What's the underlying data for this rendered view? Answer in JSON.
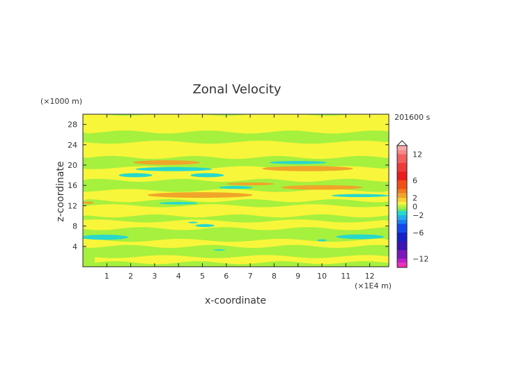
{
  "chart_data": {
    "type": "heatmap",
    "title": "Zonal Velocity",
    "xlabel": "x-coordinate",
    "ylabel": "z-coordinate",
    "x_unit": "(×1E4 m)",
    "y_unit": "(×1000 m)",
    "time_label": "201600 s",
    "xlim": [
      0,
      12.8
    ],
    "ylim": [
      0,
      30
    ],
    "x_ticks": [
      1,
      2,
      3,
      4,
      5,
      6,
      7,
      8,
      9,
      10,
      11,
      12
    ],
    "y_ticks": [
      4,
      8,
      12,
      16,
      20,
      24,
      28
    ],
    "colorbar": {
      "min": -14,
      "max": 14,
      "tick_values": [
        12,
        6,
        2,
        0,
        -2,
        -6,
        -12
      ],
      "tick_labels": [
        "12",
        "6",
        "2",
        "0",
        "−2",
        "−6",
        "−12"
      ]
    },
    "background_value": 0,
    "features": [
      {
        "kind": "band",
        "x": [
          0.0,
          12.8
        ],
        "z": [
          26.5,
          30.0
        ],
        "value": 0.6
      },
      {
        "kind": "band",
        "x": [
          0.0,
          12.8
        ],
        "z": [
          21.5,
          24.5
        ],
        "value": 0.6
      },
      {
        "kind": "band",
        "x": [
          0.0,
          12.8
        ],
        "z": [
          17.0,
          19.5
        ],
        "value": 0.6
      },
      {
        "kind": "band",
        "x": [
          0.0,
          12.8
        ],
        "z": [
          13.0,
          15.0
        ],
        "value": 0.6
      },
      {
        "kind": "band",
        "x": [
          0.0,
          12.8
        ],
        "z": [
          10.0,
          12.0
        ],
        "value": 0.6
      },
      {
        "kind": "band",
        "x": [
          0.0,
          12.8
        ],
        "z": [
          7.5,
          9.0
        ],
        "value": 0.6
      },
      {
        "kind": "band",
        "x": [
          0.0,
          12.8
        ],
        "z": [
          4.0,
          5.2
        ],
        "value": 0.6
      },
      {
        "kind": "band",
        "x": [
          0.5,
          12.8
        ],
        "z": [
          0.8,
          2.0
        ],
        "value": 0.6
      },
      {
        "kind": "blob",
        "x": 3.5,
        "z": 20.5,
        "w": 2.8,
        "h": 0.9,
        "value": 2.4
      },
      {
        "kind": "blob",
        "x": 3.8,
        "z": 19.2,
        "w": 3.2,
        "h": 0.8,
        "value": -1.6
      },
      {
        "kind": "blob",
        "x": 2.2,
        "z": 18.0,
        "w": 1.4,
        "h": 0.8,
        "value": -1.6
      },
      {
        "kind": "blob",
        "x": 5.2,
        "z": 18.0,
        "w": 1.4,
        "h": 0.8,
        "value": -1.6
      },
      {
        "kind": "blob",
        "x": 9.4,
        "z": 19.3,
        "w": 3.8,
        "h": 1.0,
        "value": 2.4
      },
      {
        "kind": "blob",
        "x": 9.0,
        "z": 20.5,
        "w": 2.4,
        "h": 0.6,
        "value": -1.6
      },
      {
        "kind": "blob",
        "x": 7.0,
        "z": 16.3,
        "w": 2.0,
        "h": 0.6,
        "value": 2.4
      },
      {
        "kind": "blob",
        "x": 6.4,
        "z": 15.6,
        "w": 1.4,
        "h": 0.6,
        "value": -1.6
      },
      {
        "kind": "blob",
        "x": 10.0,
        "z": 15.6,
        "w": 3.4,
        "h": 0.9,
        "value": 2.4
      },
      {
        "kind": "blob",
        "x": 4.9,
        "z": 14.1,
        "w": 4.4,
        "h": 1.1,
        "value": 2.4
      },
      {
        "kind": "blob",
        "x": 11.6,
        "z": 14.0,
        "w": 2.4,
        "h": 0.6,
        "value": -1.6
      },
      {
        "kind": "blob",
        "x": 4.0,
        "z": 12.5,
        "w": 1.6,
        "h": 0.5,
        "value": -1.6
      },
      {
        "kind": "blob",
        "x": 0.2,
        "z": 12.6,
        "w": 0.5,
        "h": 0.5,
        "value": 2.4
      },
      {
        "kind": "blob",
        "x": 0.9,
        "z": 5.8,
        "w": 2.0,
        "h": 1.0,
        "value": -1.6
      },
      {
        "kind": "blob",
        "x": 11.6,
        "z": 5.9,
        "w": 2.0,
        "h": 0.9,
        "value": -1.6
      },
      {
        "kind": "blob",
        "x": 5.1,
        "z": 8.1,
        "w": 0.8,
        "h": 0.6,
        "value": -1.6
      },
      {
        "kind": "blob",
        "x": 4.6,
        "z": 8.7,
        "w": 0.4,
        "h": 0.3,
        "value": -1.6
      },
      {
        "kind": "blob",
        "x": 10.0,
        "z": 5.2,
        "w": 0.4,
        "h": 0.4,
        "value": -1.6
      },
      {
        "kind": "blob",
        "x": 5.7,
        "z": 3.3,
        "w": 0.5,
        "h": 0.3,
        "value": -1.6
      }
    ]
  },
  "colors": {
    "background_green": "#a6f03e",
    "yellow": "#f8f63a",
    "orange": "#f0a52a",
    "cyan": "#27d8cc",
    "text": "#333333"
  },
  "colorbar_palette": [
    {
      "from": 13,
      "to": 14,
      "color": "#f7aaaa"
    },
    {
      "from": 12,
      "to": 13,
      "color": "#f48a8a"
    },
    {
      "from": 10,
      "to": 12,
      "color": "#f06060"
    },
    {
      "from": 8,
      "to": 10,
      "color": "#ee3a3a"
    },
    {
      "from": 6,
      "to": 8,
      "color": "#ea1e1e"
    },
    {
      "from": 4,
      "to": 6,
      "color": "#f05018"
    },
    {
      "from": 3,
      "to": 4,
      "color": "#f07a20"
    },
    {
      "from": 2,
      "to": 3,
      "color": "#f0a52a"
    },
    {
      "from": 1,
      "to": 2,
      "color": "#f7d033"
    },
    {
      "from": 0.5,
      "to": 1,
      "color": "#f8f63a"
    },
    {
      "from": 0,
      "to": 0.5,
      "color": "#c8f23c"
    },
    {
      "from": -0.5,
      "to": 0,
      "color": "#a6f03e"
    },
    {
      "from": -1,
      "to": -0.5,
      "color": "#6ee850"
    },
    {
      "from": -2,
      "to": -1,
      "color": "#27d8cc"
    },
    {
      "from": -3,
      "to": -2,
      "color": "#22b0e8"
    },
    {
      "from": -4,
      "to": -3,
      "color": "#1a80f0"
    },
    {
      "from": -6,
      "to": -4,
      "color": "#1248ea"
    },
    {
      "from": -8,
      "to": -6,
      "color": "#1420c8"
    },
    {
      "from": -10,
      "to": -8,
      "color": "#3a14b4"
    },
    {
      "from": -12,
      "to": -10,
      "color": "#7a18b8"
    },
    {
      "from": -13,
      "to": -12,
      "color": "#c020c8"
    },
    {
      "from": -14,
      "to": -13,
      "color": "#f030b8"
    }
  ]
}
